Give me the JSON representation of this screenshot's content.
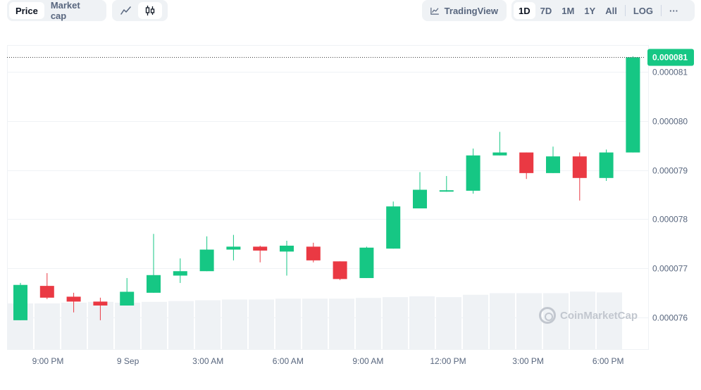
{
  "toolbar": {
    "type_tabs": [
      {
        "label": "Price",
        "active": true
      },
      {
        "label": "Market cap",
        "active": false
      }
    ],
    "chart_styles": [
      {
        "icon": "line-chart-icon",
        "active": false
      },
      {
        "icon": "candlestick-icon",
        "active": true
      }
    ],
    "tradingview_label": "TradingView",
    "ranges": [
      {
        "label": "1D",
        "active": true
      },
      {
        "label": "7D",
        "active": false
      },
      {
        "label": "1M",
        "active": false
      },
      {
        "label": "1Y",
        "active": false
      },
      {
        "label": "All",
        "active": false
      }
    ],
    "log_label": "LOG",
    "more_label": "···"
  },
  "watermark": "CoinMarketCap",
  "colors": {
    "up": "#16c784",
    "down": "#ea3943",
    "volume": "#eff2f5",
    "grid": "#eff2f5"
  },
  "chart_data": {
    "type": "candlestick",
    "x_tick_labels": [
      "9:00 PM",
      "9 Sep",
      "3:00 AM",
      "6:00 AM",
      "9:00 AM",
      "12:00 PM",
      "3:00 PM",
      "6:00 PM"
    ],
    "y_tick_labels": [
      "0.000081",
      "0.000080",
      "0.000079",
      "0.000078",
      "0.000077",
      "0.000076"
    ],
    "y_ticks": [
      8.1e-05,
      8e-05,
      7.9e-05,
      7.8e-05,
      7.7e-05,
      7.6e-05
    ],
    "ylim": [
      7.535e-05,
      8.155e-05
    ],
    "current_price": 8.13e-05,
    "current_price_label": "0.000081",
    "candles": [
      {
        "o": 7.594e-05,
        "h": 7.67e-05,
        "l": 7.594e-05,
        "c": 7.666e-05
      },
      {
        "o": 7.664e-05,
        "h": 7.69e-05,
        "l": 7.637e-05,
        "c": 7.64e-05
      },
      {
        "o": 7.642e-05,
        "h": 7.65e-05,
        "l": 7.61e-05,
        "c": 7.632e-05
      },
      {
        "o": 7.632e-05,
        "h": 7.64e-05,
        "l": 7.594e-05,
        "c": 7.624e-05
      },
      {
        "o": 7.624e-05,
        "h": 7.68e-05,
        "l": 7.624e-05,
        "c": 7.652e-05
      },
      {
        "o": 7.65e-05,
        "h": 7.77e-05,
        "l": 7.65e-05,
        "c": 7.686e-05
      },
      {
        "o": 7.685e-05,
        "h": 7.72e-05,
        "l": 7.67e-05,
        "c": 7.694e-05
      },
      {
        "o": 7.694e-05,
        "h": 7.765e-05,
        "l": 7.694e-05,
        "c": 7.738e-05
      },
      {
        "o": 7.738e-05,
        "h": 7.768e-05,
        "l": 7.716e-05,
        "c": 7.744e-05
      },
      {
        "o": 7.744e-05,
        "h": 7.746e-05,
        "l": 7.712e-05,
        "c": 7.736e-05
      },
      {
        "o": 7.734e-05,
        "h": 7.756e-05,
        "l": 7.685e-05,
        "c": 7.746e-05
      },
      {
        "o": 7.744e-05,
        "h": 7.752e-05,
        "l": 7.712e-05,
        "c": 7.716e-05
      },
      {
        "o": 7.714e-05,
        "h": 7.714e-05,
        "l": 7.676e-05,
        "c": 7.678e-05
      },
      {
        "o": 7.68e-05,
        "h": 7.744e-05,
        "l": 7.68e-05,
        "c": 7.742e-05
      },
      {
        "o": 7.74e-05,
        "h": 7.836e-05,
        "l": 7.74e-05,
        "c": 7.826e-05
      },
      {
        "o": 7.822e-05,
        "h": 7.896e-05,
        "l": 7.822e-05,
        "c": 7.86e-05
      },
      {
        "o": 7.859e-05,
        "h": 7.888e-05,
        "l": 7.856e-05,
        "c": 7.859e-05
      },
      {
        "o": 7.858e-05,
        "h": 7.944e-05,
        "l": 7.852e-05,
        "c": 7.93e-05
      },
      {
        "o": 7.93e-05,
        "h": 7.978e-05,
        "l": 7.93e-05,
        "c": 7.936e-05
      },
      {
        "o": 7.936e-05,
        "h": 7.936e-05,
        "l": 7.882e-05,
        "c": 7.894e-05
      },
      {
        "o": 7.894e-05,
        "h": 7.948e-05,
        "l": 7.894e-05,
        "c": 7.928e-05
      },
      {
        "o": 7.928e-05,
        "h": 7.936e-05,
        "l": 7.838e-05,
        "c": 7.884e-05
      },
      {
        "o": 7.884e-05,
        "h": 7.942e-05,
        "l": 7.878e-05,
        "c": 7.936e-05
      },
      {
        "o": 7.936e-05,
        "h": 8.132e-05,
        "l": 7.936e-05,
        "c": 8.13e-05
      }
    ],
    "volumes": [
      58,
      58,
      59,
      60,
      59,
      60,
      61,
      62,
      63,
      63,
      64,
      64,
      64,
      65,
      66,
      67,
      66,
      69,
      71,
      71,
      71,
      73,
      72,
      0
    ]
  }
}
